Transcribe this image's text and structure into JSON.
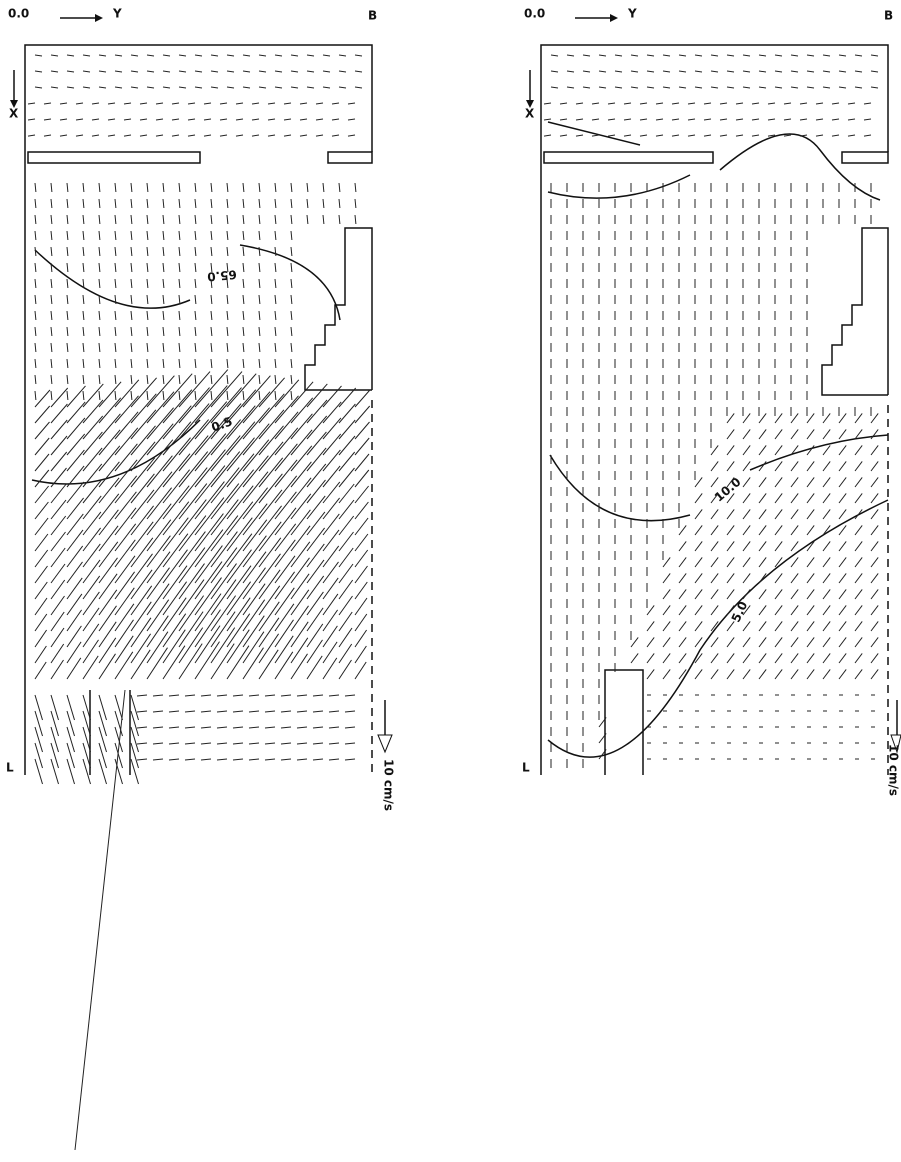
{
  "panels": [
    {
      "origin": "0.0",
      "y_axis": "Y",
      "corner": "B",
      "x_axis": "X",
      "bottom": "L",
      "scale": "10 cm/s",
      "contours": [
        "65.0",
        "0.5"
      ]
    },
    {
      "origin": "0.0",
      "y_axis": "Y",
      "corner": "B",
      "x_axis": "X",
      "bottom": "L",
      "scale": "10 cm/s",
      "contours": [
        "10.0",
        "5.0"
      ]
    }
  ]
}
